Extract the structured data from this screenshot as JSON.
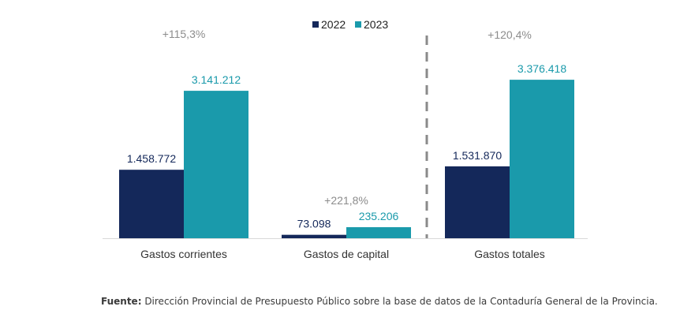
{
  "chart_data": {
    "type": "bar",
    "categories": [
      "Gastos corrientes",
      "Gastos de capital",
      "Gastos totales"
    ],
    "series": [
      {
        "name": "2022",
        "values": [
          1458772,
          73098,
          1531870
        ],
        "labels": [
          "1.458.772",
          "73.098",
          "1.531.870"
        ],
        "color": "#14285a"
      },
      {
        "name": "2023",
        "values": [
          3141212,
          235206,
          3376418
        ],
        "labels": [
          "3.141.212",
          "235.206",
          "3.376.418"
        ],
        "color": "#1a9aab"
      }
    ],
    "changes": [
      "+115,3%",
      "+221,8%",
      "+120,4%"
    ],
    "legend_position": "top-center",
    "separator": "dashed vertical line between Gastos de capital and Gastos totales",
    "grid": false,
    "colors": {
      "label_2022": "#14285a",
      "label_2023": "#1a9aab",
      "change": "#8c8c8c",
      "axis": "#d9d9d9"
    }
  },
  "source": {
    "label": "Fuente:",
    "text": " Dirección Provincial de Presupuesto Público sobre la base de datos de la Contaduría General de la Provincia."
  }
}
